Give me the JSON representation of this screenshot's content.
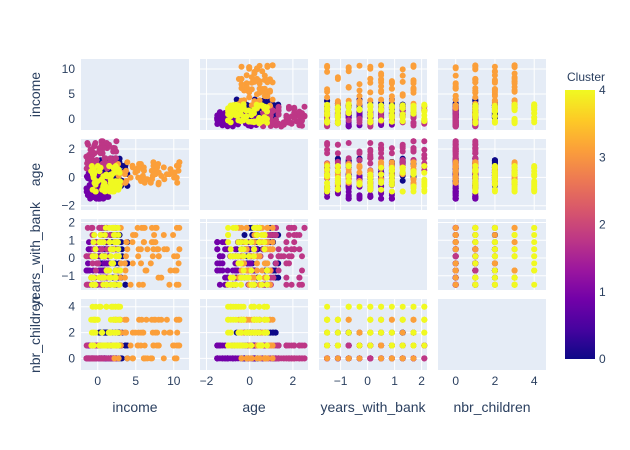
{
  "chart_data": {
    "type": "scatter",
    "variables": [
      "income",
      "age",
      "years_with_bank",
      "nbr_children"
    ],
    "axis_ticks": {
      "income": [
        0,
        5,
        10
      ],
      "age": [
        -2,
        0,
        2
      ],
      "years_with_bank": [
        -1,
        0,
        1,
        2
      ],
      "nbr_children": [
        0,
        2,
        4
      ]
    },
    "axis_tick_labels": {
      "income": [
        "0",
        "5",
        "10"
      ],
      "age": [
        "−2",
        "0",
        "2"
      ],
      "years_with_bank": [
        "−1",
        "0",
        "1",
        "2"
      ],
      "nbr_children": [
        "0",
        "2",
        "4"
      ]
    },
    "axis_ranges": {
      "income": [
        -2.2,
        12
      ],
      "age": [
        -2.3,
        2.7
      ],
      "years_with_bank": [
        -1.8,
        2.2
      ],
      "nbr_children": [
        -0.9,
        4.6
      ]
    },
    "diagonal_empty": true,
    "grid": true,
    "color_scale": {
      "title": "Cluster",
      "range": [
        0,
        4
      ],
      "ticks": [
        "0",
        "1",
        "2",
        "3",
        "4"
      ],
      "colors": [
        "#0d0887",
        "#46039f",
        "#7201a8",
        "#9c179e",
        "#bd3786",
        "#d8576b",
        "#ed7953",
        "#fb9f3a",
        "#fdca26",
        "#f0f921"
      ]
    },
    "clusters": [
      {
        "cluster": 0,
        "income": [
          0,
          4
        ],
        "age": [
          -0.6,
          1.3
        ],
        "years_with_bank": [
          -1.5,
          1.8
        ],
        "nbr_children": [
          0,
          1,
          2
        ]
      },
      {
        "cluster": 1,
        "income": [
          -1.5,
          1.5
        ],
        "age": [
          -1.5,
          0.3
        ],
        "years_with_bank": [
          -1.5,
          1.0
        ],
        "nbr_children": [
          0,
          1
        ]
      },
      {
        "cluster": 2,
        "income": [
          -1.5,
          2.5
        ],
        "age": [
          0.5,
          2.5
        ],
        "years_with_bank": [
          -1.5,
          2.0
        ],
        "nbr_children": [
          0,
          1
        ]
      },
      {
        "cluster": 3,
        "income": [
          2,
          11
        ],
        "age": [
          -0.5,
          1.0
        ],
        "years_with_bank": [
          -1.5,
          1.8
        ],
        "nbr_children": [
          0,
          1,
          2,
          3
        ]
      },
      {
        "cluster": 4,
        "income": [
          -1,
          3
        ],
        "age": [
          -1.0,
          0.8
        ],
        "years_with_bank": [
          -1.5,
          2.0
        ],
        "nbr_children": [
          1,
          2,
          3,
          4
        ]
      }
    ]
  }
}
